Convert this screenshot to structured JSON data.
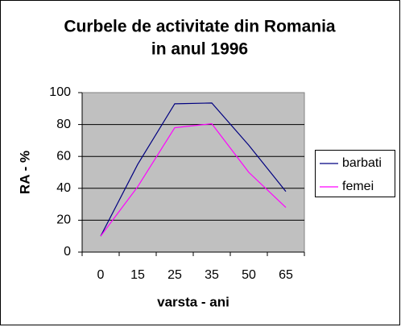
{
  "chart_data": {
    "type": "line",
    "title": [
      "Curbele de activitate din Romania",
      "in anul 1996"
    ],
    "x_label": "varsta - ani",
    "y_label": "RA - %",
    "categories": [
      "0",
      "15",
      "25",
      "35",
      "50",
      "65"
    ],
    "series": [
      {
        "name": "barbati",
        "color": "#000080",
        "values": [
          10,
          55,
          93,
          93.5,
          67,
          38
        ]
      },
      {
        "name": "femei",
        "color": "#ff00ff",
        "values": [
          10,
          41,
          78,
          80.5,
          50,
          28
        ]
      }
    ],
    "ylim": [
      0,
      100
    ],
    "yticks": [
      0,
      20,
      40,
      60,
      80,
      100
    ],
    "grid": true,
    "legend": "right"
  }
}
